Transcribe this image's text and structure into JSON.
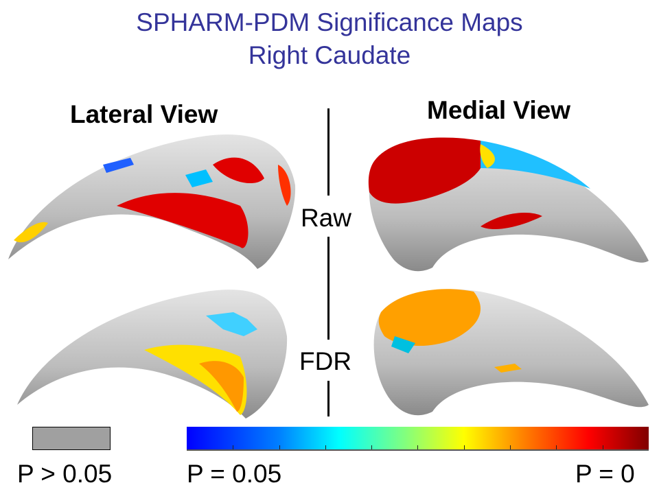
{
  "title": {
    "line1": "SPHARM-PDM Significance Maps",
    "line2": "Right Caudate"
  },
  "views": {
    "lateral": "Lateral View",
    "medial": "Medial View"
  },
  "rows": {
    "raw": "Raw",
    "fdr": "FDR"
  },
  "legend": {
    "nonsig_label": "P > 0.05",
    "min_label": "P = 0.05",
    "max_label": "P = 0",
    "nonsig_color": "#a0a0a0",
    "colormap": [
      "#0000ff",
      "#00ffff",
      "#ffff00",
      "#ff0000",
      "#800000"
    ]
  }
}
